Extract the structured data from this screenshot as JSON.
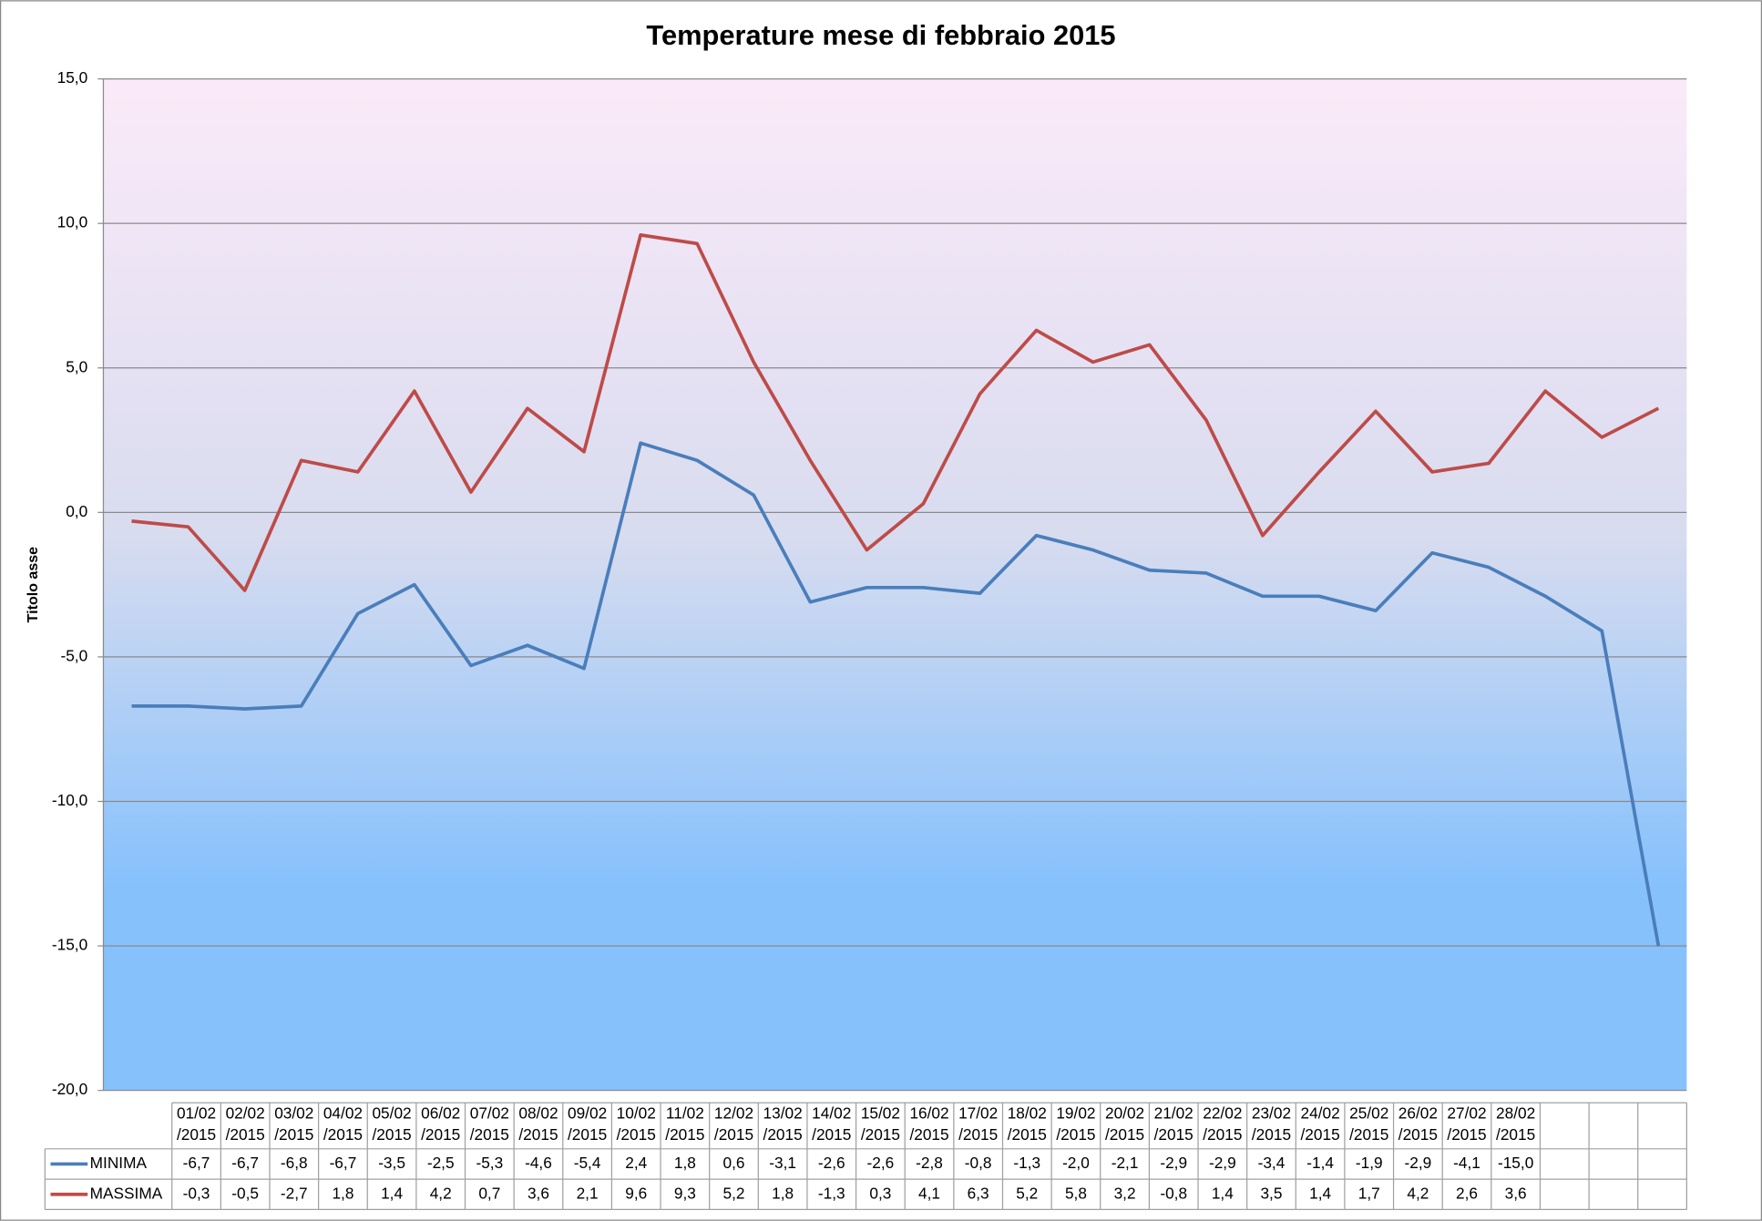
{
  "chart_data": {
    "type": "line",
    "title": "Temperature mese di febbraio 2015",
    "y_axis_label": "Titolo asse",
    "categories": [
      "01/02/2015",
      "02/02/2015",
      "03/02/2015",
      "04/02/2015",
      "05/02/2015",
      "06/02/2015",
      "07/02/2015",
      "08/02/2015",
      "09/02/2015",
      "10/02/2015",
      "11/02/2015",
      "12/02/2015",
      "13/02/2015",
      "14/02/2015",
      "15/02/2015",
      "16/02/2015",
      "17/02/2015",
      "18/02/2015",
      "19/02/2015",
      "20/02/2015",
      "21/02/2015",
      "22/02/2015",
      "23/02/2015",
      "24/02/2015",
      "25/02/2015",
      "26/02/2015",
      "27/02/2015",
      "28/02/2015"
    ],
    "series": [
      {
        "name": "MINIMA",
        "color": "#4a7ebb",
        "values": [
          -6.7,
          -6.7,
          -6.8,
          -6.7,
          -3.5,
          -2.5,
          -5.3,
          -4.6,
          -5.4,
          2.4,
          1.8,
          0.6,
          -3.1,
          -2.6,
          -2.6,
          -2.8,
          -0.8,
          -1.3,
          -2.0,
          -2.1,
          -2.9,
          -2.9,
          -3.4,
          -1.4,
          -1.9,
          -2.9,
          -4.1,
          -15.0
        ],
        "value_labels": [
          "-6,7",
          "-6,7",
          "-6,8",
          "-6,7",
          "-3,5",
          "-2,5",
          "-5,3",
          "-4,6",
          "-5,4",
          "2,4",
          "1,8",
          "0,6",
          "-3,1",
          "-2,6",
          "-2,6",
          "-2,8",
          "-0,8",
          "-1,3",
          "-2,0",
          "-2,1",
          "-2,9",
          "-2,9",
          "-3,4",
          "-1,4",
          "-1,9",
          "-2,9",
          "-4,1",
          "-15,0"
        ]
      },
      {
        "name": "MASSIMA",
        "color": "#be4b48",
        "values": [
          -0.3,
          -0.5,
          -2.7,
          1.8,
          1.4,
          4.2,
          0.7,
          3.6,
          2.1,
          9.6,
          9.3,
          5.2,
          1.8,
          -1.3,
          0.3,
          4.1,
          6.3,
          5.2,
          5.8,
          3.2,
          -0.8,
          1.4,
          3.5,
          1.4,
          1.7,
          4.2,
          2.6,
          3.6
        ],
        "value_labels": [
          "-0,3",
          "-0,5",
          "-2,7",
          "1,8",
          "1,4",
          "4,2",
          "0,7",
          "3,6",
          "2,1",
          "9,6",
          "9,3",
          "5,2",
          "1,8",
          "-1,3",
          "0,3",
          "4,1",
          "6,3",
          "5,2",
          "5,8",
          "3,2",
          "-0,8",
          "1,4",
          "3,5",
          "1,4",
          "1,7",
          "4,2",
          "2,6",
          "3,6"
        ]
      }
    ],
    "ylim": [
      -20,
      15
    ],
    "yticks": [
      {
        "value": -20,
        "label": "-20,0"
      },
      {
        "value": -15,
        "label": "-15,0"
      },
      {
        "value": -10,
        "label": "-10,0"
      },
      {
        "value": -5,
        "label": "-5,0"
      },
      {
        "value": 0,
        "label": "0,0"
      },
      {
        "value": 5,
        "label": "5,0"
      },
      {
        "value": 10,
        "label": "10,0"
      },
      {
        "value": 15,
        "label": "15,0"
      }
    ],
    "grid": true,
    "data_table": true
  }
}
